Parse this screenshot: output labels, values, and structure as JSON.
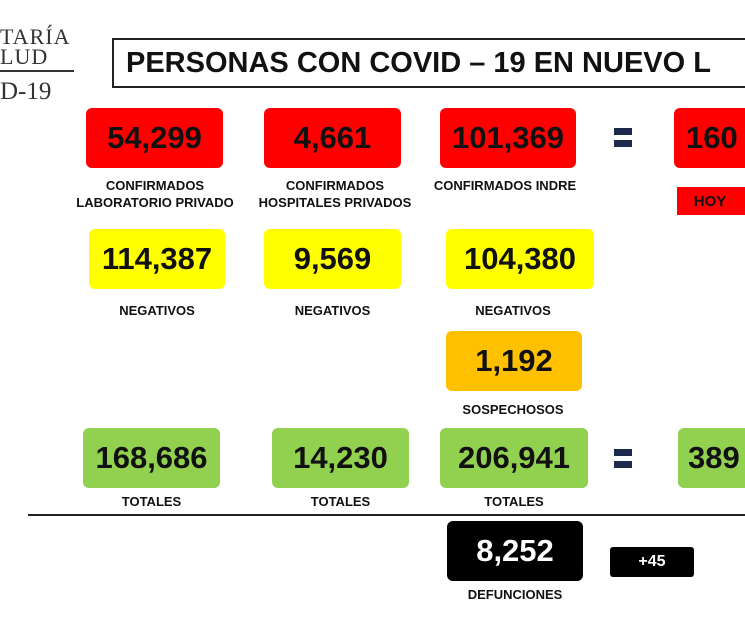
{
  "logo": {
    "line1": "TARÍA",
    "line2": "LUD",
    "line3": "D-19"
  },
  "title": "PERSONAS CON COVID – 19 EN NUEVO L",
  "confirmados": {
    "privado_lab": {
      "value": "54,299",
      "label1": "CONFIRMADOS",
      "label2": "LABORATORIO PRIVADO"
    },
    "hospitales": {
      "value": "4,661",
      "label1": "CONFIRMADOS",
      "label2": "HOSPITALES PRIVADOS"
    },
    "indre": {
      "value": "101,369",
      "label1": "CONFIRMADOS INDRE"
    },
    "total": {
      "value": "160",
      "hoy": "HOY"
    }
  },
  "negativos": {
    "privado_lab": {
      "value": "114,387",
      "label": "NEGATIVOS"
    },
    "hospitales": {
      "value": "9,569",
      "label": "NEGATIVOS"
    },
    "indre": {
      "value": "104,380",
      "label": "NEGATIVOS"
    }
  },
  "sospechosos": {
    "value": "1,192",
    "label": "SOSPECHOSOS"
  },
  "totales": {
    "privado_lab": {
      "value": "168,686",
      "label": "TOTALES"
    },
    "hospitales": {
      "value": "14,230",
      "label": "TOTALES"
    },
    "indre": {
      "value": "206,941",
      "label": "TOTALES"
    },
    "total": {
      "value": "389"
    }
  },
  "defunciones": {
    "value": "8,252",
    "label": "DEFUNCIONES",
    "increment": "+45"
  },
  "colors": {
    "red": "#ff0000",
    "yellow": "#ffff00",
    "orange": "#ffc000",
    "green": "#92d050",
    "black": "#000000"
  }
}
